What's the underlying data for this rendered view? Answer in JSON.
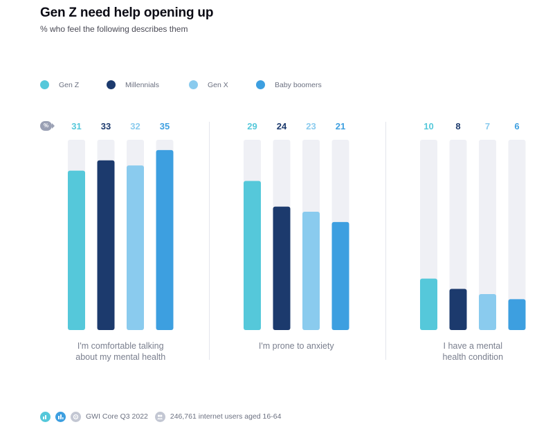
{
  "title": "Gen Z need help opening up",
  "subtitle": "% who feel the following describes them",
  "unit_badge": "%",
  "footer": {
    "source": "GWI Core Q3 2022",
    "base": "246,761 internet users aged 16-64"
  },
  "icons": [
    "bar-chart-icon",
    "bar-chart-alt-icon",
    "source-icon",
    "users-icon"
  ],
  "colors": {
    "gen_z": "#55c8da",
    "millennials": "#1c3a6d",
    "gen_x": "#8acbee",
    "baby_boomers": "#3d9fe0",
    "track": "#eff0f5"
  },
  "chart_data": {
    "type": "bar",
    "title": "Gen Z need help opening up",
    "subtitle": "% who feel the following describes them",
    "categories": [
      "I'm comfortable talking about my mental health",
      "I'm prone to anxiety",
      "I have a mental health condition"
    ],
    "category_lines": [
      [
        "I'm comfortable talking",
        "about my mental health"
      ],
      [
        "I'm prone to anxiety"
      ],
      [
        "I have a mental",
        "health condition"
      ]
    ],
    "series": [
      {
        "name": "Gen Z",
        "color": "#55c8da",
        "values": [
          31,
          29,
          10
        ]
      },
      {
        "name": "Millennials",
        "color": "#1c3a6d",
        "values": [
          33,
          24,
          8
        ]
      },
      {
        "name": "Gen X",
        "color": "#8acbee",
        "values": [
          32,
          23,
          7
        ]
      },
      {
        "name": "Baby boomers",
        "color": "#3d9fe0",
        "values": [
          35,
          21,
          6
        ]
      }
    ],
    "ylim": [
      0,
      37
    ],
    "legend_position": "top-left",
    "grid": false,
    "data_labels": true
  }
}
